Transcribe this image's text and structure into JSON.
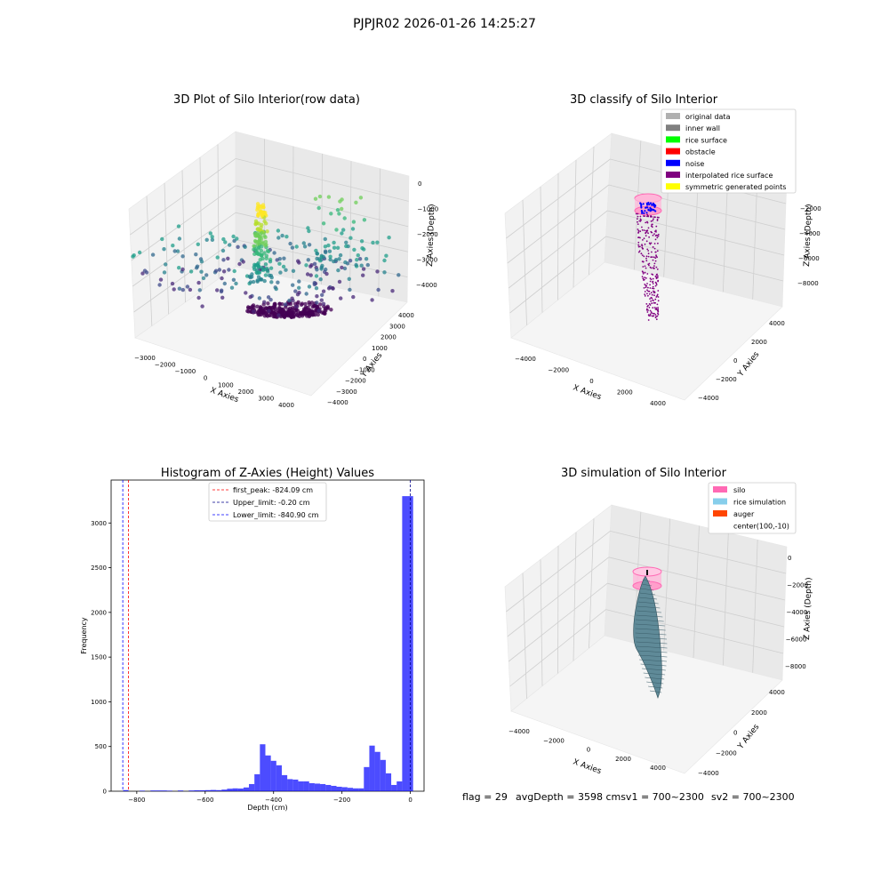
{
  "suptitle": "PJPJR02 2026-01-26 14:25:27",
  "footer": {
    "flag": "flag = 29",
    "avg": "avgDepth = 3598 cmsv1 = 700~2300",
    "sv2": "sv2 = 700~2300"
  },
  "chart_data": [
    {
      "type": "scatter",
      "title": "3D Plot of Silo Interior(row data)",
      "xlabel": "X Axies",
      "ylabel": "Y Axies",
      "zlabel": "Z Axies (Depth)",
      "x_ticks": [
        "−3000",
        "−2000",
        "−1000",
        "0",
        "1000",
        "2000",
        "3000",
        "4000"
      ],
      "y_ticks": [
        "−4000",
        "−3000",
        "−2000",
        "−1000",
        "0",
        "1000",
        "2000",
        "3000",
        "4000"
      ],
      "z_ticks": [
        "0",
        "−1000",
        "−2000",
        "−3000",
        "−4000"
      ],
      "colormap": "viridis"
    },
    {
      "type": "scatter",
      "title": "3D classify of Silo Interior",
      "xlabel": "X Axies",
      "ylabel": "Y Axies",
      "zlabel": "Z Axies (Depth)",
      "x_ticks": [
        "−4000",
        "−2000",
        "0",
        "2000",
        "4000"
      ],
      "y_ticks": [
        "−4000",
        "−2000",
        "0",
        "2000",
        "4000"
      ],
      "z_ticks": [
        "−2000",
        "−4000",
        "−6000",
        "−8000"
      ],
      "legend_position": "top-right",
      "legend": [
        {
          "label": "original data",
          "color": "#b0b0b0"
        },
        {
          "label": "inner wall",
          "color": "#808080"
        },
        {
          "label": "rice surface",
          "color": "#00ff00"
        },
        {
          "label": "obstacle",
          "color": "#ff0000"
        },
        {
          "label": "noise",
          "color": "#0000ff"
        },
        {
          "label": "interpolated rice surface",
          "color": "#800080"
        },
        {
          "label": "symmetric generated points",
          "color": "#ffff00"
        }
      ]
    },
    {
      "type": "bar",
      "title": "Histogram of Z-Axies (Height) Values",
      "xlabel": "Depth (cm)",
      "ylabel": "Frequency",
      "xlim": [
        -875,
        40
      ],
      "ylim": [
        0,
        3480
      ],
      "x_ticks": [
        -800,
        -600,
        -400,
        -200,
        0
      ],
      "x_tick_labels": [
        "−800",
        "−600",
        "−400",
        "−200",
        "0"
      ],
      "y_ticks": [
        0,
        500,
        1000,
        1500,
        2000,
        2500,
        3000
      ],
      "bin_width": 16,
      "bar_color": "#0000ff",
      "bins": [
        [
          -840,
          12
        ],
        [
          -792,
          6
        ],
        [
          -760,
          8
        ],
        [
          -744,
          8
        ],
        [
          -728,
          8
        ],
        [
          -712,
          6
        ],
        [
          -680,
          8
        ],
        [
          -648,
          8
        ],
        [
          -632,
          10
        ],
        [
          -616,
          10
        ],
        [
          -600,
          12
        ],
        [
          -584,
          14
        ],
        [
          -568,
          12
        ],
        [
          -552,
          18
        ],
        [
          -536,
          28
        ],
        [
          -520,
          32
        ],
        [
          -504,
          30
        ],
        [
          -488,
          42
        ],
        [
          -472,
          80
        ],
        [
          -456,
          190
        ],
        [
          -440,
          525
        ],
        [
          -424,
          400
        ],
        [
          -408,
          340
        ],
        [
          -392,
          290
        ],
        [
          -376,
          180
        ],
        [
          -360,
          135
        ],
        [
          -344,
          130
        ],
        [
          -328,
          110
        ],
        [
          -312,
          110
        ],
        [
          -296,
          90
        ],
        [
          -280,
          85
        ],
        [
          -264,
          80
        ],
        [
          -248,
          70
        ],
        [
          -232,
          60
        ],
        [
          -216,
          50
        ],
        [
          -200,
          45
        ],
        [
          -184,
          38
        ],
        [
          -168,
          32
        ],
        [
          -152,
          32
        ],
        [
          -136,
          270
        ],
        [
          -120,
          510
        ],
        [
          -104,
          440
        ],
        [
          -88,
          350
        ],
        [
          -72,
          200
        ],
        [
          -56,
          70
        ],
        [
          -40,
          110
        ],
        [
          -24,
          3300
        ],
        [
          -8,
          3300
        ]
      ],
      "vlines": [
        {
          "x": -824.09,
          "label": "first_peak: -824.09 cm",
          "color": "#ff0000"
        },
        {
          "x": -0.2,
          "label": "Upper_limit: -0.20 cm",
          "color": "#00008b"
        },
        {
          "x": -840.9,
          "label": "Lower_limit: -840.90 cm",
          "color": "#0000ff"
        }
      ],
      "legend_position": "top-center"
    },
    {
      "type": "surface",
      "title": "3D simulation of Silo Interior",
      "xlabel": "X Axies",
      "ylabel": "Y Axies",
      "zlabel": "Z Axies (Depth)",
      "x_ticks": [
        "−4000",
        "−2000",
        "0",
        "2000",
        "4000"
      ],
      "y_ticks": [
        "−4000",
        "−2000",
        "0",
        "2000",
        "4000"
      ],
      "z_ticks": [
        "0",
        "−2000",
        "−4000",
        "−6000",
        "−8000"
      ],
      "legend_position": "top-right",
      "legend": [
        {
          "label": "silo",
          "color": "#ff69b4"
        },
        {
          "label": "rice simulation",
          "color": "#87ceeb"
        },
        {
          "label": "auger",
          "color": "#ff4500"
        },
        {
          "label": "center(100,-10)",
          "color": ""
        }
      ]
    }
  ]
}
